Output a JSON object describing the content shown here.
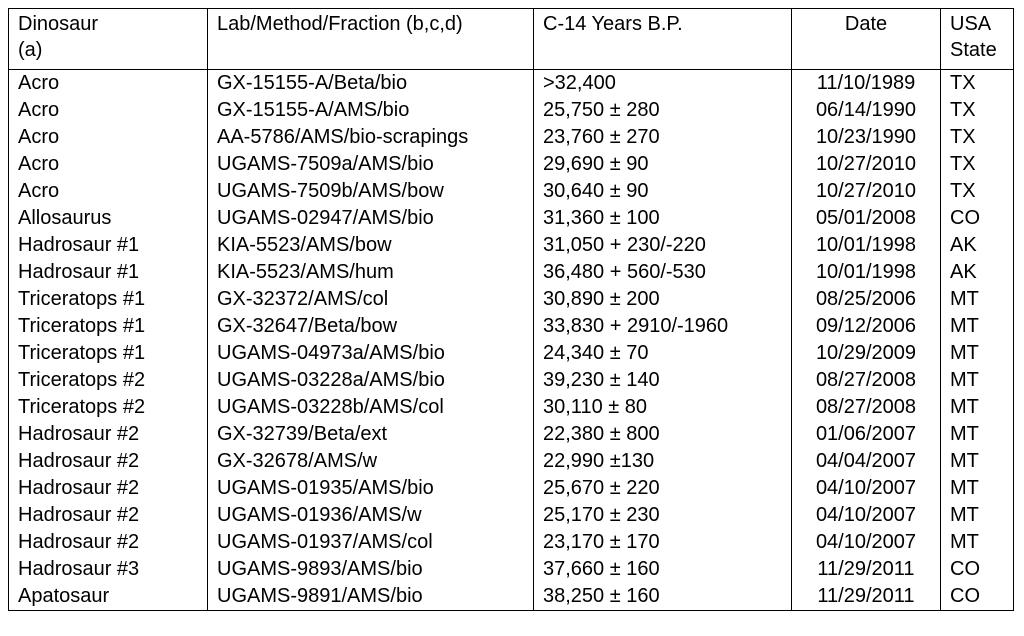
{
  "table": {
    "header": [
      [
        "Dinosaur",
        "(a)"
      ],
      [
        "Lab/Method/Fraction (b,c,d)"
      ],
      [
        "C-14 Years B.P."
      ],
      [
        "Date"
      ],
      [
        "USA",
        "State"
      ]
    ],
    "rows": [
      [
        "Acro",
        "GX-15155-A/Beta/bio",
        ">32,400",
        "11/10/1989",
        "TX"
      ],
      [
        "Acro",
        "GX-15155-A/AMS/bio",
        "25,750 ± 280",
        "06/14/1990",
        "TX"
      ],
      [
        "Acro",
        "AA-5786/AMS/bio-scrapings",
        "23,760 ± 270",
        "10/23/1990",
        "TX"
      ],
      [
        "Acro",
        "UGAMS-7509a/AMS/bio",
        "29,690 ± 90",
        "10/27/2010",
        "TX"
      ],
      [
        "Acro",
        "UGAMS-7509b/AMS/bow",
        "30,640 ± 90",
        "10/27/2010",
        "TX"
      ],
      [
        "Allosaurus",
        "UGAMS-02947/AMS/bio",
        "31,360 ± 100",
        "05/01/2008",
        "CO"
      ],
      [
        "Hadrosaur #1",
        "KIA-5523/AMS/bow",
        "31,050 + 230/-220",
        "10/01/1998",
        "AK"
      ],
      [
        "Hadrosaur #1",
        "KIA-5523/AMS/hum",
        "36,480 + 560/-530",
        "10/01/1998",
        "AK"
      ],
      [
        "Triceratops #1",
        "GX-32372/AMS/col",
        "30,890 ± 200",
        "08/25/2006",
        "MT"
      ],
      [
        "Triceratops #1",
        "GX-32647/Beta/bow",
        "33,830 + 2910/-1960",
        "09/12/2006",
        "MT"
      ],
      [
        "Triceratops #1",
        "UGAMS-04973a/AMS/bio",
        "24,340 ± 70",
        "10/29/2009",
        "MT"
      ],
      [
        "Triceratops #2",
        "UGAMS-03228a/AMS/bio",
        "39,230 ± 140",
        "08/27/2008",
        "MT"
      ],
      [
        "Triceratops #2",
        "UGAMS-03228b/AMS/col",
        "30,110 ± 80",
        "08/27/2008",
        "MT"
      ],
      [
        "Hadrosaur #2",
        "GX-32739/Beta/ext",
        "22,380 ± 800",
        "01/06/2007",
        "MT"
      ],
      [
        "Hadrosaur #2",
        "GX-32678/AMS/w",
        "22,990 ±130",
        "04/04/2007",
        "MT"
      ],
      [
        "Hadrosaur #2",
        "UGAMS-01935/AMS/bio",
        "25,670 ± 220",
        "04/10/2007",
        "MT"
      ],
      [
        "Hadrosaur #2",
        "UGAMS-01936/AMS/w",
        "25,170 ± 230",
        "04/10/2007",
        "MT"
      ],
      [
        "Hadrosaur #2",
        "UGAMS-01937/AMS/col",
        "23,170 ± 170",
        "04/10/2007",
        "MT"
      ],
      [
        "Hadrosaur #3",
        "UGAMS-9893/AMS/bio",
        "37,660 ± 160",
        "11/29/2011",
        "CO"
      ],
      [
        "Apatosaur",
        "UGAMS-9891/AMS/bio",
        "38,250 ± 160",
        "11/29/2011",
        "CO"
      ]
    ]
  }
}
